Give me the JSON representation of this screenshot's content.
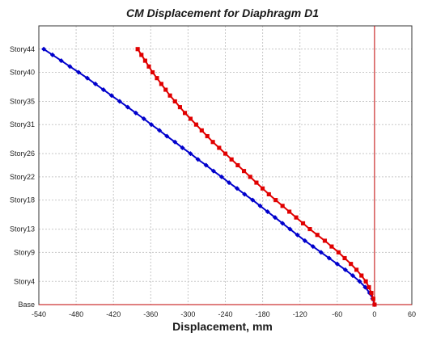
{
  "chart_data": {
    "type": "line",
    "title": "CM Displacement for Diaphragm D1",
    "xlabel": "Displacement, mm",
    "ylabel": "",
    "xlim": [
      -540,
      60
    ],
    "xticks": [
      -540,
      -480,
      -420,
      -360,
      -300,
      -240,
      -180,
      -120,
      -60,
      0,
      60
    ],
    "yticks": [
      {
        "label": "Story44",
        "level": 44
      },
      {
        "label": "Story40",
        "level": 40
      },
      {
        "label": "Story35",
        "level": 35
      },
      {
        "label": "Story31",
        "level": 31
      },
      {
        "label": "Story26",
        "level": 26
      },
      {
        "label": "Story22",
        "level": 22
      },
      {
        "label": "Story18",
        "level": 18
      },
      {
        "label": "Story13",
        "level": 13
      },
      {
        "label": "Story9",
        "level": 9
      },
      {
        "label": "Story4",
        "level": 4
      },
      {
        "label": "Base",
        "level": 0
      }
    ],
    "ylim": [
      0,
      48
    ],
    "grid": true,
    "reference_line_x": 0,
    "series": [
      {
        "color": "#0000cc",
        "marker": "diamond",
        "points": [
          {
            "story": 0,
            "x": 0
          },
          {
            "story": 1,
            "x": -3
          },
          {
            "story": 2,
            "x": -8
          },
          {
            "story": 3,
            "x": -15
          },
          {
            "story": 4,
            "x": -24
          },
          {
            "story": 5,
            "x": -35
          },
          {
            "story": 6,
            "x": -47
          },
          {
            "story": 7,
            "x": -60
          },
          {
            "story": 8,
            "x": -73
          },
          {
            "story": 9,
            "x": -86
          },
          {
            "story": 10,
            "x": -99
          },
          {
            "story": 11,
            "x": -112
          },
          {
            "story": 12,
            "x": -124
          },
          {
            "story": 13,
            "x": -136
          },
          {
            "story": 14,
            "x": -148
          },
          {
            "story": 15,
            "x": -160
          },
          {
            "story": 16,
            "x": -172
          },
          {
            "story": 17,
            "x": -184
          },
          {
            "story": 18,
            "x": -196
          },
          {
            "story": 19,
            "x": -209
          },
          {
            "story": 20,
            "x": -221
          },
          {
            "story": 21,
            "x": -234
          },
          {
            "story": 22,
            "x": -246
          },
          {
            "story": 23,
            "x": -259
          },
          {
            "story": 24,
            "x": -271
          },
          {
            "story": 25,
            "x": -284
          },
          {
            "story": 26,
            "x": -296
          },
          {
            "story": 27,
            "x": -309
          },
          {
            "story": 28,
            "x": -321
          },
          {
            "story": 29,
            "x": -334
          },
          {
            "story": 30,
            "x": -346
          },
          {
            "story": 31,
            "x": -359
          },
          {
            "story": 32,
            "x": -371
          },
          {
            "story": 33,
            "x": -384
          },
          {
            "story": 34,
            "x": -397
          },
          {
            "story": 35,
            "x": -410
          },
          {
            "story": 36,
            "x": -423
          },
          {
            "story": 37,
            "x": -436
          },
          {
            "story": 38,
            "x": -449
          },
          {
            "story": 39,
            "x": -462
          },
          {
            "story": 40,
            "x": -476
          },
          {
            "story": 41,
            "x": -490
          },
          {
            "story": 42,
            "x": -504
          },
          {
            "story": 43,
            "x": -518
          },
          {
            "story": 44,
            "x": -532
          }
        ]
      },
      {
        "color": "#e00000",
        "marker": "square",
        "points": [
          {
            "story": 0,
            "x": 0
          },
          {
            "story": 1,
            "x": -2
          },
          {
            "story": 2,
            "x": -5
          },
          {
            "story": 3,
            "x": -9
          },
          {
            "story": 4,
            "x": -14
          },
          {
            "story": 5,
            "x": -21
          },
          {
            "story": 6,
            "x": -29
          },
          {
            "story": 7,
            "x": -38
          },
          {
            "story": 8,
            "x": -48
          },
          {
            "story": 9,
            "x": -58
          },
          {
            "story": 10,
            "x": -69
          },
          {
            "story": 11,
            "x": -80
          },
          {
            "story": 12,
            "x": -92
          },
          {
            "story": 13,
            "x": -104
          },
          {
            "story": 14,
            "x": -115
          },
          {
            "story": 15,
            "x": -126
          },
          {
            "story": 16,
            "x": -137
          },
          {
            "story": 17,
            "x": -148
          },
          {
            "story": 18,
            "x": -159
          },
          {
            "story": 19,
            "x": -170
          },
          {
            "story": 20,
            "x": -180
          },
          {
            "story": 21,
            "x": -190
          },
          {
            "story": 22,
            "x": -200
          },
          {
            "story": 23,
            "x": -210
          },
          {
            "story": 24,
            "x": -220
          },
          {
            "story": 25,
            "x": -230
          },
          {
            "story": 26,
            "x": -240
          },
          {
            "story": 27,
            "x": -250
          },
          {
            "story": 28,
            "x": -260
          },
          {
            "story": 29,
            "x": -269
          },
          {
            "story": 30,
            "x": -278
          },
          {
            "story": 31,
            "x": -287
          },
          {
            "story": 32,
            "x": -296
          },
          {
            "story": 33,
            "x": -305
          },
          {
            "story": 34,
            "x": -313
          },
          {
            "story": 35,
            "x": -321
          },
          {
            "story": 36,
            "x": -329
          },
          {
            "story": 37,
            "x": -336
          },
          {
            "story": 38,
            "x": -343
          },
          {
            "story": 39,
            "x": -350
          },
          {
            "story": 40,
            "x": -357
          },
          {
            "story": 41,
            "x": -363
          },
          {
            "story": 42,
            "x": -369
          },
          {
            "story": 43,
            "x": -375
          },
          {
            "story": 44,
            "x": -381
          }
        ]
      }
    ]
  }
}
